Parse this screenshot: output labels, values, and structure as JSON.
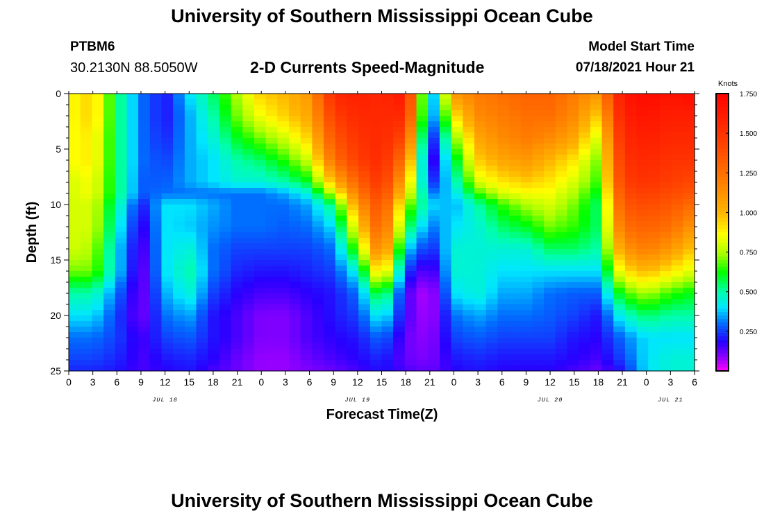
{
  "header": {
    "title": "University of Southern Mississippi Ocean Cube",
    "station_id": "PTBM6",
    "station_coords": "30.2130N  88.5050W",
    "chart_title": "2-D Currents Speed-Magnitude",
    "model_label": "Model Start Time",
    "model_time": "07/18/2021 Hour 21"
  },
  "footer": {
    "title": "University of Southern Mississippi Ocean Cube"
  },
  "chart_data": {
    "type": "heatmap",
    "title": "2-D Currents Speed-Magnitude",
    "xlabel": "Forecast Time(Z)",
    "ylabel": "Depth (ft)",
    "x_ticks": [
      "0",
      "3",
      "6",
      "9",
      "12",
      "15",
      "18",
      "21",
      "0",
      "3",
      "6",
      "9",
      "12",
      "15",
      "18",
      "21",
      "0",
      "3",
      "6",
      "9",
      "12",
      "15",
      "18",
      "21",
      "0",
      "3",
      "6"
    ],
    "date_labels": [
      {
        "label": "JUL 18",
        "tick_index": 4
      },
      {
        "label": "JUL 19",
        "tick_index": 12
      },
      {
        "label": "JUL 20",
        "tick_index": 20
      },
      {
        "label": "JUL 21",
        "tick_index": 25
      }
    ],
    "y_ticks": [
      0,
      5,
      10,
      15,
      20,
      25
    ],
    "ylim": [
      0,
      25
    ],
    "y_inverted": true,
    "colorbar": {
      "unit": "Knots",
      "ticks": [
        "1.750",
        "1.500",
        "1.250",
        "1.000",
        "0.750",
        "0.500",
        "0.250"
      ],
      "range": [
        0,
        1.75
      ]
    },
    "depths_ft": [
      0,
      2,
      4,
      6,
      8,
      9,
      10,
      12,
      14,
      16,
      18,
      20,
      22,
      24,
      25
    ],
    "times_hr_from_jul18_0z": [
      0,
      3,
      6,
      9,
      12,
      15,
      18,
      21,
      24,
      27,
      30,
      33,
      36,
      39,
      42,
      45,
      48,
      51,
      54,
      57,
      60,
      63,
      66,
      69,
      72,
      75,
      78
    ],
    "speed_knots": [
      [
        0.85,
        0.95,
        0.55,
        0.3,
        0.2,
        0.4,
        0.55,
        0.75,
        0.95,
        1.0,
        1.1,
        1.55,
        1.6,
        1.55,
        1.65,
        0.25,
        1.1,
        1.2,
        1.25,
        1.3,
        1.3,
        1.2,
        1.1,
        1.65,
        1.7,
        1.65,
        1.7
      ],
      [
        0.85,
        0.95,
        0.55,
        0.3,
        0.2,
        0.35,
        0.5,
        0.7,
        0.85,
        0.95,
        1.05,
        1.45,
        1.55,
        1.55,
        1.55,
        0.25,
        0.9,
        1.15,
        1.2,
        1.25,
        1.25,
        1.15,
        0.95,
        1.6,
        1.65,
        1.6,
        1.6
      ],
      [
        0.85,
        0.9,
        0.55,
        0.3,
        0.22,
        0.35,
        0.45,
        0.6,
        0.7,
        0.8,
        0.95,
        1.35,
        1.5,
        1.55,
        1.4,
        0.15,
        0.7,
        1.05,
        1.15,
        1.2,
        1.15,
        1.05,
        0.8,
        1.55,
        1.6,
        1.55,
        1.55
      ],
      [
        0.85,
        0.9,
        0.55,
        0.3,
        0.25,
        0.35,
        0.4,
        0.5,
        0.55,
        0.65,
        0.8,
        1.25,
        1.45,
        1.55,
        1.2,
        0.1,
        0.55,
        0.95,
        1.05,
        1.1,
        1.0,
        0.9,
        0.7,
        1.5,
        1.55,
        1.5,
        1.5
      ],
      [
        0.8,
        0.85,
        0.55,
        0.28,
        0.28,
        0.35,
        0.4,
        0.45,
        0.45,
        0.5,
        0.6,
        1.0,
        1.3,
        1.5,
        1.0,
        0.2,
        0.45,
        0.8,
        0.9,
        0.95,
        0.9,
        0.8,
        0.65,
        1.45,
        1.5,
        1.45,
        1.4
      ],
      [
        0.8,
        0.85,
        0.55,
        0.28,
        0.3,
        0.3,
        0.3,
        0.3,
        0.3,
        0.35,
        0.45,
        0.8,
        1.2,
        1.45,
        0.9,
        0.3,
        0.4,
        0.65,
        0.8,
        0.85,
        0.85,
        0.75,
        0.6,
        1.4,
        1.45,
        1.4,
        1.35
      ],
      [
        0.8,
        0.8,
        0.5,
        0.2,
        0.4,
        0.4,
        0.35,
        0.3,
        0.3,
        0.3,
        0.35,
        0.55,
        1.1,
        1.4,
        0.75,
        0.4,
        0.35,
        0.5,
        0.65,
        0.75,
        0.8,
        0.7,
        0.55,
        1.35,
        1.4,
        1.35,
        1.25
      ],
      [
        0.8,
        0.8,
        0.45,
        0.15,
        0.4,
        0.38,
        0.33,
        0.3,
        0.3,
        0.28,
        0.3,
        0.4,
        0.9,
        1.35,
        0.6,
        0.3,
        0.4,
        0.45,
        0.55,
        0.6,
        0.7,
        0.65,
        0.55,
        1.25,
        1.3,
        1.25,
        1.1
      ],
      [
        0.8,
        0.75,
        0.4,
        0.12,
        0.4,
        0.45,
        0.3,
        0.25,
        0.25,
        0.25,
        0.25,
        0.3,
        0.7,
        1.25,
        0.4,
        0.2,
        0.45,
        0.45,
        0.45,
        0.45,
        0.55,
        0.55,
        0.5,
        1.1,
        1.2,
        1.1,
        0.95
      ],
      [
        0.7,
        0.7,
        0.4,
        0.1,
        0.4,
        0.5,
        0.3,
        0.22,
        0.2,
        0.2,
        0.22,
        0.25,
        0.45,
        1.0,
        0.25,
        0.1,
        0.45,
        0.45,
        0.4,
        0.4,
        0.4,
        0.4,
        0.4,
        0.9,
        1.0,
        0.9,
        0.8
      ],
      [
        0.5,
        0.5,
        0.3,
        0.1,
        0.35,
        0.45,
        0.25,
        0.18,
        0.15,
        0.15,
        0.18,
        0.2,
        0.3,
        0.65,
        0.15,
        0.03,
        0.4,
        0.45,
        0.35,
        0.35,
        0.3,
        0.28,
        0.28,
        0.65,
        0.75,
        0.65,
        0.6
      ],
      [
        0.4,
        0.4,
        0.25,
        0.1,
        0.3,
        0.35,
        0.2,
        0.15,
        0.1,
        0.1,
        0.15,
        0.2,
        0.25,
        0.45,
        0.15,
        0.05,
        0.3,
        0.35,
        0.3,
        0.3,
        0.28,
        0.25,
        0.2,
        0.45,
        0.55,
        0.5,
        0.5
      ],
      [
        0.3,
        0.3,
        0.25,
        0.15,
        0.25,
        0.28,
        0.2,
        0.15,
        0.1,
        0.1,
        0.15,
        0.18,
        0.2,
        0.3,
        0.12,
        0.08,
        0.25,
        0.28,
        0.25,
        0.25,
        0.25,
        0.2,
        0.18,
        0.3,
        0.4,
        0.4,
        0.4
      ],
      [
        0.25,
        0.25,
        0.22,
        0.15,
        0.2,
        0.22,
        0.18,
        0.12,
        0.08,
        0.08,
        0.12,
        0.15,
        0.18,
        0.22,
        0.12,
        0.1,
        0.2,
        0.22,
        0.2,
        0.2,
        0.2,
        0.18,
        0.15,
        0.25,
        0.4,
        0.45,
        0.45
      ],
      [
        0.22,
        0.22,
        0.2,
        0.15,
        0.18,
        0.2,
        0.15,
        0.12,
        0.08,
        0.08,
        0.1,
        0.12,
        0.15,
        0.2,
        0.15,
        0.12,
        0.18,
        0.2,
        0.18,
        0.18,
        0.18,
        0.15,
        0.12,
        0.2,
        0.4,
        0.45,
        0.45
      ]
    ]
  }
}
